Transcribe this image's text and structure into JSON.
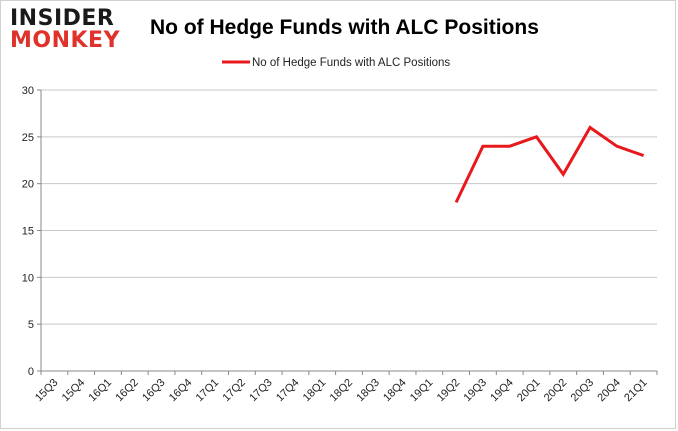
{
  "logo": {
    "line1": "INSIDER",
    "line2": "MONKEY"
  },
  "chart_data": {
    "type": "line",
    "title": "No of Hedge Funds with ALC Positions",
    "xlabel": "",
    "ylabel": "",
    "categories": [
      "15Q3",
      "15Q4",
      "16Q1",
      "16Q2",
      "16Q3",
      "16Q4",
      "17Q1",
      "17Q2",
      "17Q3",
      "17Q4",
      "18Q1",
      "18Q2",
      "18Q3",
      "18Q4",
      "19Q1",
      "19Q2",
      "19Q3",
      "19Q4",
      "20Q1",
      "20Q2",
      "20Q3",
      "20Q4",
      "21Q1"
    ],
    "series": [
      {
        "name": "No of Hedge Funds with ALC Positions",
        "color": "#e8191c",
        "values": [
          null,
          null,
          null,
          null,
          null,
          null,
          null,
          null,
          null,
          null,
          null,
          null,
          null,
          null,
          null,
          18,
          24,
          24,
          25,
          21,
          26,
          24,
          23
        ]
      }
    ],
    "ylim": [
      0,
      30
    ],
    "yticks": [
      0,
      5,
      10,
      15,
      20,
      25,
      30
    ],
    "grid": true,
    "legend": "top-center"
  }
}
